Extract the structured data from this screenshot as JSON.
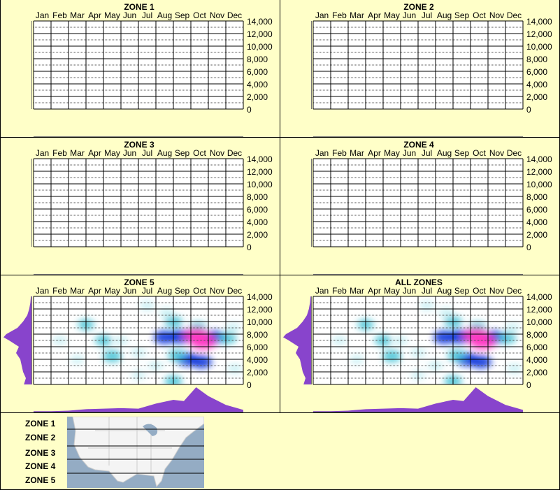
{
  "months": [
    "Jan",
    "Feb",
    "Mar",
    "Apr",
    "May",
    "Jun",
    "Jul",
    "Aug",
    "Sep",
    "Oct",
    "Nov",
    "Dec"
  ],
  "y_ticks": [
    "0",
    "2,000",
    "4,000",
    "6,000",
    "8,000",
    "10,000",
    "12,000",
    "14,000"
  ],
  "colors": {
    "background": "#ffffc8",
    "marginal": "#8844cc",
    "low": "#c8f0f4",
    "mid": "#3cc0d4",
    "high": "#0028d8",
    "peak": "#ff30c0"
  },
  "chart_data": [
    {
      "type": "heatmap",
      "title": "ZONE 1",
      "ylim": [
        0,
        14000
      ],
      "grid": true,
      "blobs": [],
      "x_profile": [],
      "y_profile": []
    },
    {
      "type": "heatmap",
      "title": "ZONE 2",
      "ylim": [
        0,
        14000
      ],
      "grid": true,
      "blobs": [],
      "x_profile": [],
      "y_profile": []
    },
    {
      "type": "heatmap",
      "title": "ZONE 3",
      "ylim": [
        0,
        14000
      ],
      "grid": true,
      "blobs": [],
      "x_profile": [],
      "y_profile": []
    },
    {
      "type": "heatmap",
      "title": "ZONE 4",
      "ylim": [
        0,
        14000
      ],
      "grid": true,
      "blobs": [],
      "x_profile": [],
      "y_profile": []
    },
    {
      "type": "heatmap",
      "title": "ZONE 5",
      "ylim": [
        0,
        14000
      ],
      "grid": true,
      "blobs": "shared",
      "x_profile": "shared",
      "y_profile": "shared"
    },
    {
      "type": "heatmap",
      "title": "ALL ZONES",
      "ylim": [
        0,
        14000
      ],
      "grid": true,
      "blobs": "shared",
      "x_profile": "shared",
      "y_profile": "shared"
    }
  ],
  "shared_density": {
    "blobs": [
      [
        7.5,
        7500,
        0.75
      ],
      [
        8.4,
        7600,
        0.85
      ],
      [
        10.4,
        7500,
        0.7
      ],
      [
        11.1,
        7400,
        0.5
      ],
      [
        8.8,
        4000,
        0.75
      ],
      [
        9.6,
        3600,
        0.7
      ],
      [
        8.2,
        4600,
        0.5
      ],
      [
        8,
        10000,
        0.45
      ],
      [
        7.6,
        11400,
        0.3
      ],
      [
        6.5,
        12500,
        0.25
      ],
      [
        4.5,
        4500,
        0.55
      ],
      [
        4,
        7000,
        0.4
      ],
      [
        3,
        9500,
        0.35
      ],
      [
        1.5,
        7000,
        0.25
      ],
      [
        5,
        7000,
        0.25
      ],
      [
        6,
        5000,
        0.3
      ],
      [
        7,
        3000,
        0.3
      ],
      [
        8,
        500,
        0.45
      ],
      [
        11.5,
        2500,
        0.3
      ],
      [
        2.5,
        4000,
        0.2
      ],
      [
        6,
        1500,
        0.2
      ],
      [
        11.4,
        9000,
        0.3
      ],
      [
        9.4,
        9000,
        0.45
      ],
      [
        9.3,
        7800,
        1.0
      ],
      [
        9.7,
        6800,
        1.0
      ]
    ],
    "x_profile": [
      [
        0,
        0.05
      ],
      [
        1,
        0.05
      ],
      [
        2,
        0.07
      ],
      [
        3,
        0.13
      ],
      [
        4,
        0.15
      ],
      [
        5,
        0.17
      ],
      [
        6,
        0.15
      ],
      [
        7,
        0.35
      ],
      [
        8,
        0.5
      ],
      [
        8.6,
        0.45
      ],
      [
        9.3,
        1.0
      ],
      [
        10,
        0.65
      ],
      [
        11,
        0.3
      ],
      [
        12,
        0.1
      ]
    ],
    "y_profile": [
      [
        0,
        0.27
      ],
      [
        1000,
        0.2
      ],
      [
        2000,
        0.3
      ],
      [
        3000,
        0.35
      ],
      [
        4000,
        0.4
      ],
      [
        5000,
        0.55
      ],
      [
        6000,
        0.45
      ],
      [
        7000,
        0.8
      ],
      [
        7500,
        1.0
      ],
      [
        8000,
        0.9
      ],
      [
        9000,
        0.5
      ],
      [
        10000,
        0.3
      ],
      [
        11000,
        0.15
      ],
      [
        12000,
        0.08
      ],
      [
        13000,
        0.04
      ],
      [
        14000,
        0.02
      ]
    ]
  },
  "legend": {
    "zones": [
      "ZONE 1",
      "ZONE 2",
      "ZONE 3",
      "ZONE 4",
      "ZONE 5"
    ]
  }
}
